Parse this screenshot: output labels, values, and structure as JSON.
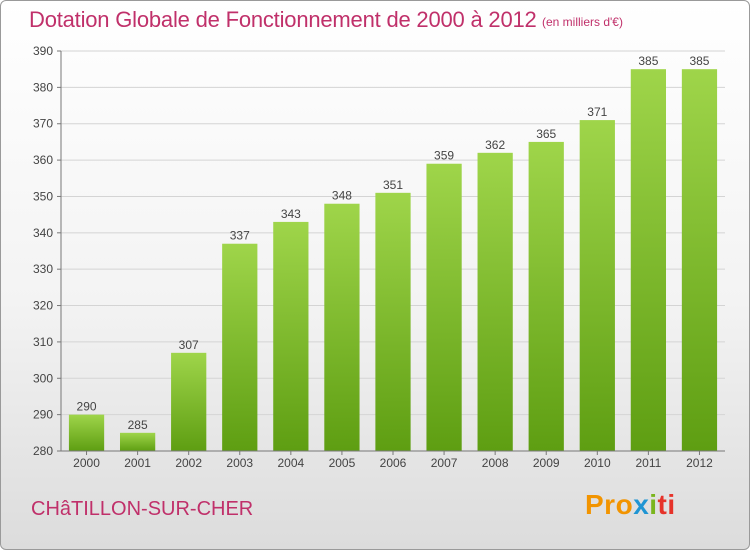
{
  "chart_data": {
    "type": "bar",
    "title": "Dotation Globale de Fonctionnement de 2000 à 2012",
    "subtitle": "(en milliers d'€)",
    "categories": [
      "2000",
      "2001",
      "2002",
      "2003",
      "2004",
      "2005",
      "2006",
      "2007",
      "2008",
      "2009",
      "2010",
      "2011",
      "2012"
    ],
    "values": [
      290,
      285,
      307,
      337,
      343,
      348,
      351,
      359,
      362,
      365,
      371,
      385,
      385
    ],
    "ylim": [
      280,
      390
    ],
    "yticks": [
      280,
      290,
      300,
      310,
      320,
      330,
      340,
      350,
      360,
      370,
      380,
      390
    ],
    "grid": true,
    "bar_color": "#7bbf2a"
  },
  "footer": {
    "town": "CHâTILLON-SUR-CHER",
    "logo": {
      "p1": "Pro",
      "p2": "x",
      "p3": "i",
      "p4": "ti"
    }
  }
}
